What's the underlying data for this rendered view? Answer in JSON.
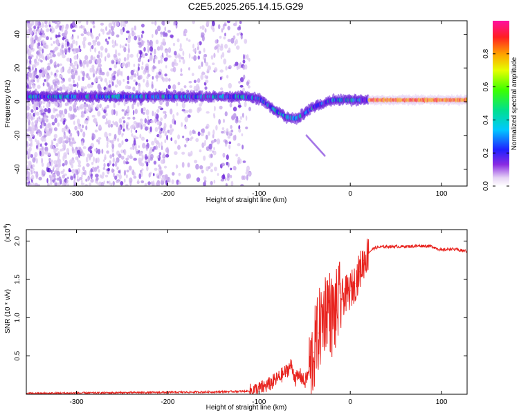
{
  "figure_title": "C2E5.2025.265.14.15.G29",
  "chart_data": [
    {
      "type": "heatmap",
      "title": "C2E5.2025.265.14.15.G29",
      "xlabel": "Height of straight line (km)",
      "ylabel": "Frequency (Hz)",
      "xlim": [
        -355,
        128
      ],
      "ylim": [
        -50,
        48
      ],
      "x_ticks": [
        -300,
        -200,
        -100,
        0,
        100
      ],
      "y_ticks": [
        -40,
        -20,
        0,
        20,
        40
      ],
      "x_tick_labels": [
        "-300",
        "-200",
        "-100",
        "0",
        "100"
      ],
      "y_tick_labels": [
        "-40",
        "-20",
        "0",
        "20",
        "40"
      ],
      "colorbar": {
        "label": "Normalized spectral amplitude",
        "range": [
          0,
          1
        ],
        "ticks": [
          0.0,
          0.2,
          0.4,
          0.6,
          0.8
        ],
        "tick_labels": [
          "0.0",
          "0.2",
          "0.4",
          "0.6",
          "0.8"
        ]
      },
      "ridge_frequency_hz": [
        {
          "x": -355,
          "y": 3
        },
        {
          "x": -300,
          "y": 3
        },
        {
          "x": -200,
          "y": 3
        },
        {
          "x": -120,
          "y": 3
        },
        {
          "x": -100,
          "y": 2
        },
        {
          "x": -90,
          "y": -2
        },
        {
          "x": -80,
          "y": -6
        },
        {
          "x": -70,
          "y": -9
        },
        {
          "x": -60,
          "y": -10
        },
        {
          "x": -50,
          "y": -7
        },
        {
          "x": -40,
          "y": -3
        },
        {
          "x": -30,
          "y": -1
        },
        {
          "x": -20,
          "y": 1
        },
        {
          "x": -10,
          "y": 1
        },
        {
          "x": 0,
          "y": 1
        },
        {
          "x": 50,
          "y": 1
        },
        {
          "x": 100,
          "y": 1
        },
        {
          "x": 128,
          "y": 1
        }
      ]
    },
    {
      "type": "line",
      "xlabel": "Height of straight line (km)",
      "ylabel": "SNR (10 * v/v)",
      "yscale_label": "(x10",
      "yscale_exponent": "4",
      "xlim": [
        -355,
        128
      ],
      "ylim": [
        0,
        2.15
      ],
      "x_ticks": [
        -300,
        -200,
        -100,
        0,
        100
      ],
      "y_ticks": [
        0.5,
        1.0,
        1.5,
        2.0
      ],
      "x_tick_labels": [
        "-300",
        "-200",
        "-100",
        "0",
        "100"
      ],
      "y_tick_labels": [
        "0.5",
        "1.0",
        "1.5",
        "2.0"
      ],
      "series": [
        {
          "name": "SNR",
          "color": "#e8231e",
          "points": [
            {
              "x": -355,
              "y": 0.01
            },
            {
              "x": -250,
              "y": 0.02
            },
            {
              "x": -150,
              "y": 0.03
            },
            {
              "x": -110,
              "y": 0.04
            },
            {
              "x": -100,
              "y": 0.07
            },
            {
              "x": -90,
              "y": 0.12
            },
            {
              "x": -80,
              "y": 0.2
            },
            {
              "x": -70,
              "y": 0.3
            },
            {
              "x": -65,
              "y": 0.38
            },
            {
              "x": -60,
              "y": 0.2
            },
            {
              "x": -55,
              "y": 0.25
            },
            {
              "x": -50,
              "y": 0.15
            },
            {
              "x": -45,
              "y": 0.3
            },
            {
              "x": -40,
              "y": 0.55
            },
            {
              "x": -35,
              "y": 0.8
            },
            {
              "x": -30,
              "y": 1.0
            },
            {
              "x": -25,
              "y": 1.2
            },
            {
              "x": -20,
              "y": 1.0
            },
            {
              "x": -15,
              "y": 1.1
            },
            {
              "x": -10,
              "y": 1.25
            },
            {
              "x": -5,
              "y": 1.3
            },
            {
              "x": 0,
              "y": 1.35
            },
            {
              "x": 5,
              "y": 1.45
            },
            {
              "x": 10,
              "y": 1.6
            },
            {
              "x": 15,
              "y": 1.75
            },
            {
              "x": 20,
              "y": 1.85
            },
            {
              "x": 25,
              "y": 1.9
            },
            {
              "x": 30,
              "y": 1.92
            },
            {
              "x": 40,
              "y": 1.93
            },
            {
              "x": 60,
              "y": 1.93
            },
            {
              "x": 80,
              "y": 1.94
            },
            {
              "x": 90,
              "y": 1.93
            },
            {
              "x": 100,
              "y": 1.88
            },
            {
              "x": 110,
              "y": 1.9
            },
            {
              "x": 120,
              "y": 1.88
            },
            {
              "x": 128,
              "y": 1.87
            }
          ]
        }
      ]
    }
  ]
}
